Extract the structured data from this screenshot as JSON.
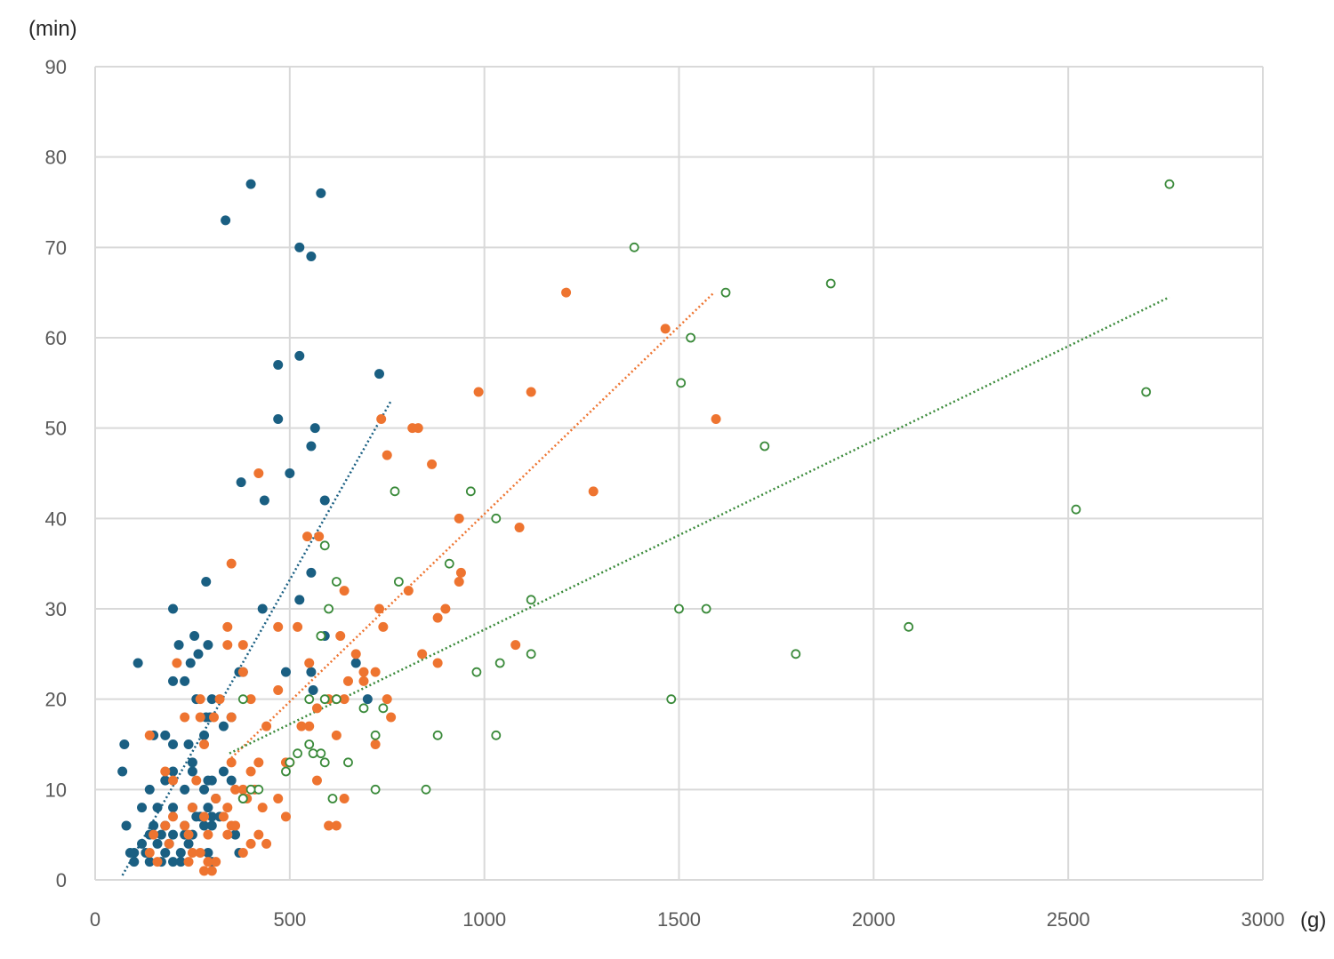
{
  "chart_data": {
    "type": "scatter",
    "title": "",
    "xlabel": "(g)",
    "ylabel": "(min)",
    "xlim": [
      0,
      3000
    ],
    "ylim": [
      0,
      90
    ],
    "xticks": [
      0,
      500,
      1000,
      1500,
      2000,
      2500,
      3000
    ],
    "yticks": [
      0,
      10,
      20,
      30,
      40,
      50,
      60,
      70,
      80,
      90
    ],
    "grid": true,
    "colors": {
      "blue": "#1a5f82",
      "orange": "#ee7430",
      "green": "#3a8a3a",
      "grid": "#d9d9d9"
    },
    "series": [
      {
        "color": "#1a5f82",
        "marker": "filled-circle",
        "trendline": {
          "style": "dotted",
          "x": [
            70,
            760
          ],
          "y": [
            0.5,
            53
          ]
        },
        "points": [
          [
            400,
            77
          ],
          [
            580,
            76
          ],
          [
            335,
            73
          ],
          [
            525,
            70
          ],
          [
            555,
            69
          ],
          [
            525,
            58
          ],
          [
            470,
            57
          ],
          [
            730,
            56
          ],
          [
            470,
            51
          ],
          [
            565,
            50
          ],
          [
            555,
            48
          ],
          [
            375,
            44
          ],
          [
            500,
            45
          ],
          [
            435,
            42
          ],
          [
            590,
            42
          ],
          [
            555,
            34
          ],
          [
            285,
            33
          ],
          [
            525,
            31
          ],
          [
            200,
            30
          ],
          [
            430,
            30
          ],
          [
            590,
            27
          ],
          [
            110,
            24
          ],
          [
            215,
            26
          ],
          [
            255,
            27
          ],
          [
            265,
            25
          ],
          [
            290,
            26
          ],
          [
            245,
            24
          ],
          [
            670,
            24
          ],
          [
            200,
            22
          ],
          [
            230,
            22
          ],
          [
            380,
            23
          ],
          [
            370,
            23
          ],
          [
            490,
            23
          ],
          [
            555,
            23
          ],
          [
            560,
            21
          ],
          [
            700,
            20
          ],
          [
            260,
            20
          ],
          [
            300,
            20
          ],
          [
            75,
            15
          ],
          [
            70,
            12
          ],
          [
            150,
            16
          ],
          [
            200,
            15
          ],
          [
            180,
            16
          ],
          [
            240,
            15
          ],
          [
            280,
            16
          ],
          [
            250,
            13
          ],
          [
            295,
            18
          ],
          [
            285,
            18
          ],
          [
            330,
            17
          ],
          [
            350,
            18
          ],
          [
            200,
            12
          ],
          [
            250,
            12
          ],
          [
            180,
            11
          ],
          [
            140,
            10
          ],
          [
            230,
            10
          ],
          [
            280,
            10
          ],
          [
            290,
            11
          ],
          [
            300,
            11
          ],
          [
            330,
            12
          ],
          [
            350,
            11
          ],
          [
            120,
            8
          ],
          [
            160,
            8
          ],
          [
            200,
            8
          ],
          [
            250,
            8
          ],
          [
            270,
            7
          ],
          [
            290,
            8
          ],
          [
            310,
            9
          ],
          [
            300,
            7
          ],
          [
            80,
            6
          ],
          [
            150,
            6
          ],
          [
            180,
            6
          ],
          [
            230,
            6
          ],
          [
            260,
            7
          ],
          [
            280,
            6
          ],
          [
            300,
            6
          ],
          [
            320,
            7
          ],
          [
            140,
            5
          ],
          [
            170,
            5
          ],
          [
            200,
            5
          ],
          [
            230,
            5
          ],
          [
            250,
            5
          ],
          [
            120,
            4
          ],
          [
            100,
            3
          ],
          [
            130,
            3
          ],
          [
            180,
            3
          ],
          [
            220,
            3
          ],
          [
            90,
            3
          ],
          [
            140,
            2
          ],
          [
            170,
            2
          ],
          [
            220,
            2
          ],
          [
            300,
            2
          ],
          [
            360,
            5
          ],
          [
            370,
            3
          ],
          [
            380,
            9
          ],
          [
            160,
            4
          ],
          [
            190,
            4
          ],
          [
            240,
            4
          ],
          [
            100,
            2
          ],
          [
            200,
            2
          ],
          [
            290,
            3
          ]
        ]
      },
      {
        "color": "#ee7430",
        "marker": "filled-circle",
        "trendline": {
          "style": "dotted",
          "x": [
            350,
            1590
          ],
          "y": [
            13.5,
            65
          ]
        },
        "points": [
          [
            1210,
            65
          ],
          [
            1465,
            61
          ],
          [
            1595,
            51
          ],
          [
            985,
            54
          ],
          [
            1120,
            54
          ],
          [
            735,
            51
          ],
          [
            815,
            50
          ],
          [
            830,
            50
          ],
          [
            750,
            47
          ],
          [
            865,
            46
          ],
          [
            420,
            45
          ],
          [
            1280,
            43
          ],
          [
            935,
            40
          ],
          [
            1090,
            39
          ],
          [
            545,
            38
          ],
          [
            575,
            38
          ],
          [
            935,
            33
          ],
          [
            940,
            34
          ],
          [
            350,
            35
          ],
          [
            805,
            32
          ],
          [
            640,
            32
          ],
          [
            730,
            30
          ],
          [
            900,
            30
          ],
          [
            880,
            29
          ],
          [
            340,
            28
          ],
          [
            470,
            28
          ],
          [
            520,
            28
          ],
          [
            740,
            28
          ],
          [
            1080,
            26
          ],
          [
            840,
            25
          ],
          [
            340,
            26
          ],
          [
            380,
            26
          ],
          [
            630,
            27
          ],
          [
            550,
            24
          ],
          [
            670,
            25
          ],
          [
            880,
            24
          ],
          [
            690,
            23
          ],
          [
            210,
            24
          ],
          [
            720,
            23
          ],
          [
            650,
            22
          ],
          [
            690,
            22
          ],
          [
            380,
            23
          ],
          [
            470,
            21
          ],
          [
            620,
            20
          ],
          [
            640,
            20
          ],
          [
            750,
            20
          ],
          [
            270,
            20
          ],
          [
            320,
            20
          ],
          [
            400,
            20
          ],
          [
            570,
            19
          ],
          [
            600,
            20
          ],
          [
            760,
            18
          ],
          [
            230,
            18
          ],
          [
            270,
            18
          ],
          [
            305,
            18
          ],
          [
            350,
            18
          ],
          [
            530,
            17
          ],
          [
            550,
            17
          ],
          [
            140,
            16
          ],
          [
            280,
            15
          ],
          [
            620,
            16
          ],
          [
            720,
            15
          ],
          [
            440,
            17
          ],
          [
            180,
            12
          ],
          [
            200,
            11
          ],
          [
            260,
            11
          ],
          [
            350,
            13
          ],
          [
            400,
            12
          ],
          [
            420,
            13
          ],
          [
            490,
            13
          ],
          [
            500,
            13
          ],
          [
            570,
            11
          ],
          [
            360,
            10
          ],
          [
            380,
            10
          ],
          [
            410,
            10
          ],
          [
            310,
            9
          ],
          [
            340,
            8
          ],
          [
            390,
            9
          ],
          [
            470,
            9
          ],
          [
            430,
            8
          ],
          [
            490,
            7
          ],
          [
            640,
            9
          ],
          [
            250,
            8
          ],
          [
            180,
            6
          ],
          [
            200,
            7
          ],
          [
            230,
            6
          ],
          [
            280,
            7
          ],
          [
            330,
            7
          ],
          [
            360,
            6
          ],
          [
            600,
            6
          ],
          [
            620,
            6
          ],
          [
            150,
            5
          ],
          [
            190,
            4
          ],
          [
            240,
            5
          ],
          [
            290,
            5
          ],
          [
            340,
            5
          ],
          [
            420,
            5
          ],
          [
            440,
            4
          ],
          [
            270,
            3
          ],
          [
            290,
            2
          ],
          [
            310,
            2
          ],
          [
            240,
            2
          ],
          [
            160,
            2
          ],
          [
            140,
            3
          ],
          [
            280,
            1
          ],
          [
            300,
            1
          ],
          [
            380,
            3
          ],
          [
            400,
            4
          ],
          [
            350,
            6
          ],
          [
            250,
            3
          ]
        ]
      },
      {
        "color": "#3a8a3a",
        "marker": "hollow-circle",
        "trendline": {
          "style": "dotted",
          "x": [
            345,
            2760
          ],
          "y": [
            14,
            64.5
          ]
        },
        "points": [
          [
            2760,
            77
          ],
          [
            1385,
            70
          ],
          [
            1890,
            66
          ],
          [
            1620,
            65
          ],
          [
            1530,
            60
          ],
          [
            1505,
            55
          ],
          [
            2700,
            54
          ],
          [
            1720,
            48
          ],
          [
            770,
            43
          ],
          [
            965,
            43
          ],
          [
            1030,
            40
          ],
          [
            2520,
            41
          ],
          [
            590,
            37
          ],
          [
            910,
            35
          ],
          [
            620,
            33
          ],
          [
            780,
            33
          ],
          [
            1120,
            31
          ],
          [
            600,
            30
          ],
          [
            1500,
            30
          ],
          [
            1570,
            30
          ],
          [
            580,
            27
          ],
          [
            2090,
            28
          ],
          [
            1120,
            25
          ],
          [
            1800,
            25
          ],
          [
            980,
            23
          ],
          [
            1040,
            24
          ],
          [
            550,
            20
          ],
          [
            620,
            20
          ],
          [
            590,
            20
          ],
          [
            690,
            19
          ],
          [
            740,
            19
          ],
          [
            1480,
            20
          ],
          [
            380,
            20
          ],
          [
            720,
            16
          ],
          [
            880,
            16
          ],
          [
            1030,
            16
          ],
          [
            550,
            15
          ],
          [
            520,
            14
          ],
          [
            560,
            14
          ],
          [
            580,
            14
          ],
          [
            590,
            13
          ],
          [
            650,
            13
          ],
          [
            500,
            13
          ],
          [
            490,
            12
          ],
          [
            420,
            10
          ],
          [
            720,
            10
          ],
          [
            850,
            10
          ],
          [
            610,
            9
          ],
          [
            380,
            9
          ],
          [
            400,
            10
          ]
        ]
      }
    ]
  }
}
